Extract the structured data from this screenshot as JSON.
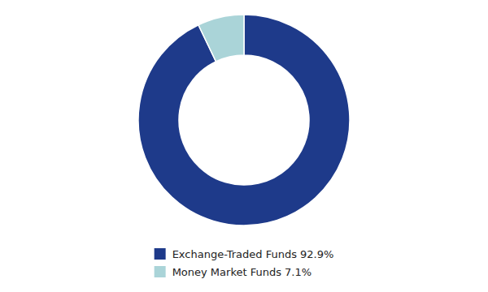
{
  "chart_data": {
    "type": "donut",
    "categories": [
      "Exchange-Traded Funds 92.9%",
      "Money Market Funds 7.1%"
    ],
    "values": [
      92.9,
      7.1
    ],
    "colors": [
      "#1e3a8a",
      "#aad4d8"
    ],
    "legend": "bottom"
  }
}
